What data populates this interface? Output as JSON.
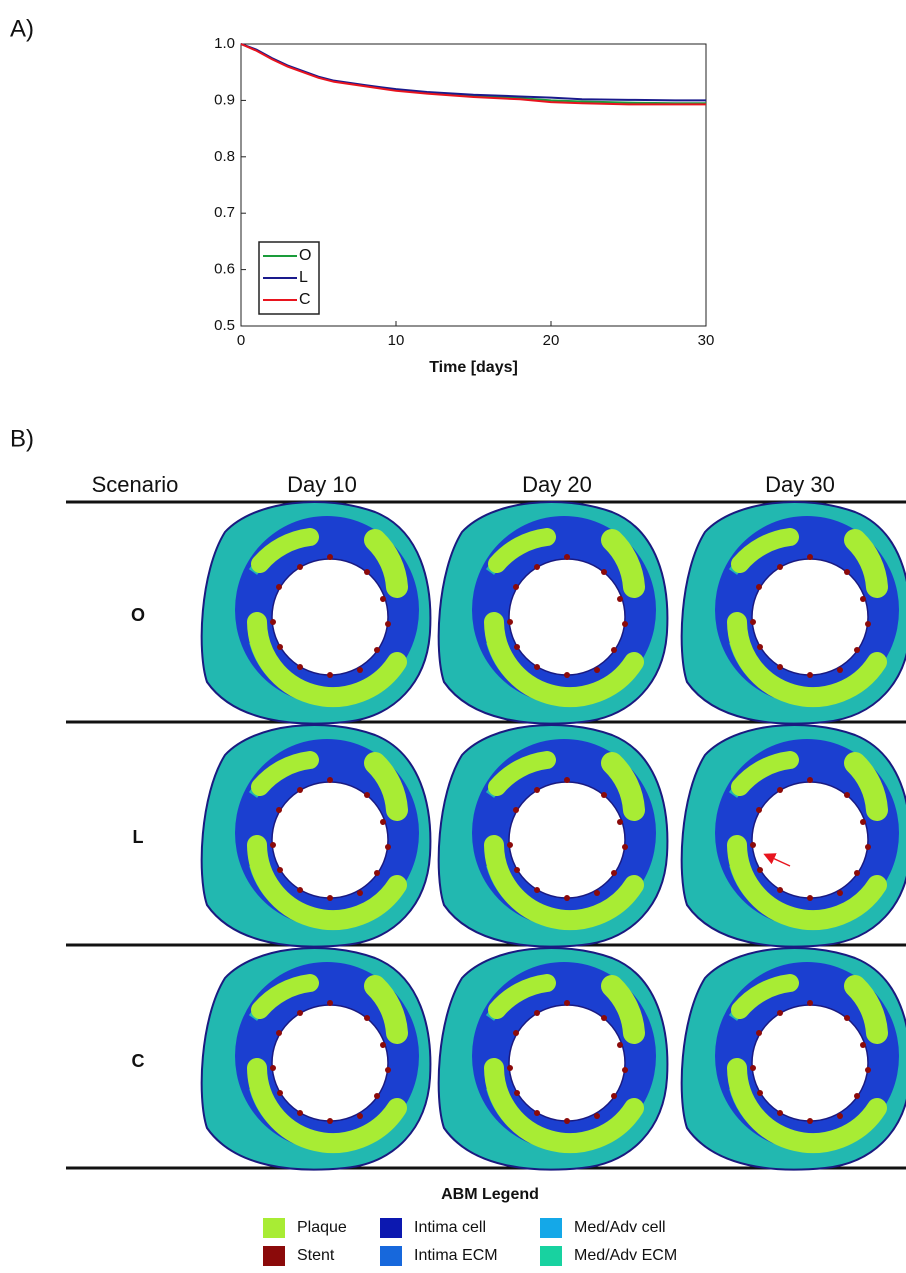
{
  "panel_labels": [
    "A)",
    "B)"
  ],
  "chart_data": {
    "type": "line",
    "xlabel": "Time [days]",
    "x": [
      0,
      1,
      2,
      3,
      4,
      5,
      6,
      8,
      10,
      12,
      15,
      18,
      20,
      22,
      25,
      28,
      30
    ],
    "series": [
      {
        "name": "O",
        "color": "#1a9c3a",
        "values": [
          1.0,
          0.989,
          0.974,
          0.961,
          0.951,
          0.941,
          0.934,
          0.926,
          0.918,
          0.913,
          0.908,
          0.904,
          0.9,
          0.898,
          0.896,
          0.895,
          0.895
        ]
      },
      {
        "name": "L",
        "color": "#1a1a8c",
        "values": [
          1.0,
          0.99,
          0.975,
          0.962,
          0.952,
          0.942,
          0.935,
          0.927,
          0.92,
          0.915,
          0.91,
          0.907,
          0.905,
          0.902,
          0.901,
          0.9,
          0.9
        ]
      },
      {
        "name": "C",
        "color": "#e8141e",
        "values": [
          1.0,
          0.988,
          0.973,
          0.96,
          0.95,
          0.94,
          0.933,
          0.925,
          0.917,
          0.912,
          0.906,
          0.902,
          0.897,
          0.895,
          0.893,
          0.893,
          0.893
        ]
      }
    ],
    "xlim": [
      0,
      30
    ],
    "xticks": [
      0,
      10,
      20,
      30
    ],
    "ylim": [
      0.5,
      1.0
    ],
    "yticks": [
      0.5,
      0.6,
      0.7,
      0.8,
      0.9,
      {
        "value": 1.0,
        "label": "1.0"
      }
    ],
    "legend": "lower left"
  },
  "grid": {
    "header": [
      "Scenario",
      "Day 10",
      "Day 20",
      "Day 30"
    ],
    "rows": [
      "O",
      "L",
      "C"
    ]
  },
  "abm_legend": {
    "title": "ABM Legend",
    "items": [
      {
        "name": "Plaque",
        "color": "#a8ec34"
      },
      {
        "name": "Stent",
        "color": "#8b0a0a"
      },
      {
        "name": "Intima cell",
        "color": "#0c18b0"
      },
      {
        "name": "Intima ECM",
        "color": "#1768dc"
      },
      {
        "name": "Med/Adv cell",
        "color": "#14a8e8"
      },
      {
        "name": "Med/Adv ECM",
        "color": "#18d2a0"
      }
    ]
  }
}
